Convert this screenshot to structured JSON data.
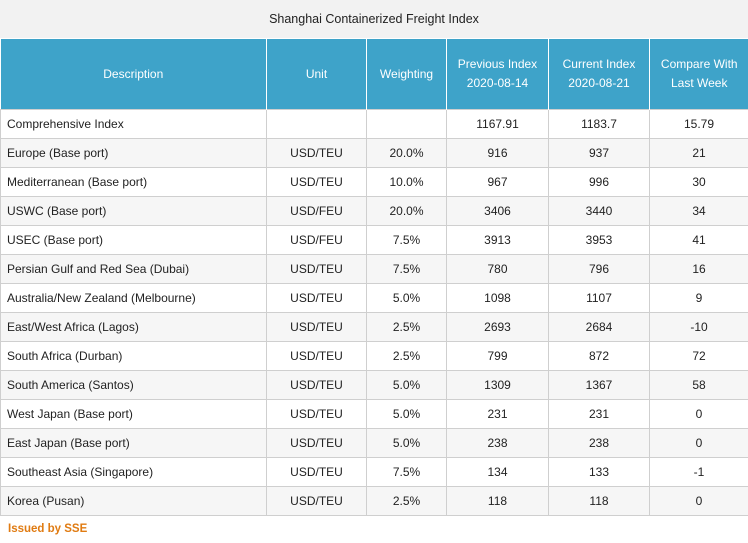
{
  "title": "Shanghai Containerized Freight Index",
  "columns": [
    {
      "key": "description",
      "lines": [
        "Description"
      ]
    },
    {
      "key": "unit",
      "lines": [
        "Unit"
      ]
    },
    {
      "key": "weighting",
      "lines": [
        "Weighting"
      ]
    },
    {
      "key": "previous",
      "lines": [
        "Previous Index",
        "2020-08-14"
      ]
    },
    {
      "key": "current",
      "lines": [
        "Current Index",
        "2020-08-21"
      ]
    },
    {
      "key": "compare",
      "lines": [
        "Compare With",
        "Last Week"
      ]
    }
  ],
  "rows": [
    [
      "Comprehensive Index",
      "",
      "",
      "1167.91",
      "1183.7",
      "15.79"
    ],
    [
      "Europe (Base port)",
      "USD/TEU",
      "20.0%",
      "916",
      "937",
      "21"
    ],
    [
      "Mediterranean (Base port)",
      "USD/TEU",
      "10.0%",
      "967",
      "996",
      "30"
    ],
    [
      "USWC (Base port)",
      "USD/FEU",
      "20.0%",
      "3406",
      "3440",
      "34"
    ],
    [
      "USEC (Base port)",
      "USD/FEU",
      "7.5%",
      "3913",
      "3953",
      "41"
    ],
    [
      "Persian Gulf and Red Sea (Dubai)",
      "USD/TEU",
      "7.5%",
      "780",
      "796",
      "16"
    ],
    [
      "Australia/New Zealand (Melbourne)",
      "USD/TEU",
      "5.0%",
      "1098",
      "1107",
      "9"
    ],
    [
      "East/West Africa (Lagos)",
      "USD/TEU",
      "2.5%",
      "2693",
      "2684",
      "-10"
    ],
    [
      "South Africa (Durban)",
      "USD/TEU",
      "2.5%",
      "799",
      "872",
      "72"
    ],
    [
      "South America (Santos)",
      "USD/TEU",
      "5.0%",
      "1309",
      "1367",
      "58"
    ],
    [
      "West Japan (Base port)",
      "USD/TEU",
      "5.0%",
      "231",
      "231",
      "0"
    ],
    [
      "East Japan (Base port)",
      "USD/TEU",
      "5.0%",
      "238",
      "238",
      "0"
    ],
    [
      "Southeast Asia (Singapore)",
      "USD/TEU",
      "7.5%",
      "134",
      "133",
      "-1"
    ],
    [
      "Korea (Pusan)",
      "USD/TEU",
      "2.5%",
      "118",
      "118",
      "0"
    ]
  ],
  "footer": "Issued by SSE",
  "colors": {
    "header_bg": "#3ea3c9",
    "footer_text": "#e07b12"
  }
}
